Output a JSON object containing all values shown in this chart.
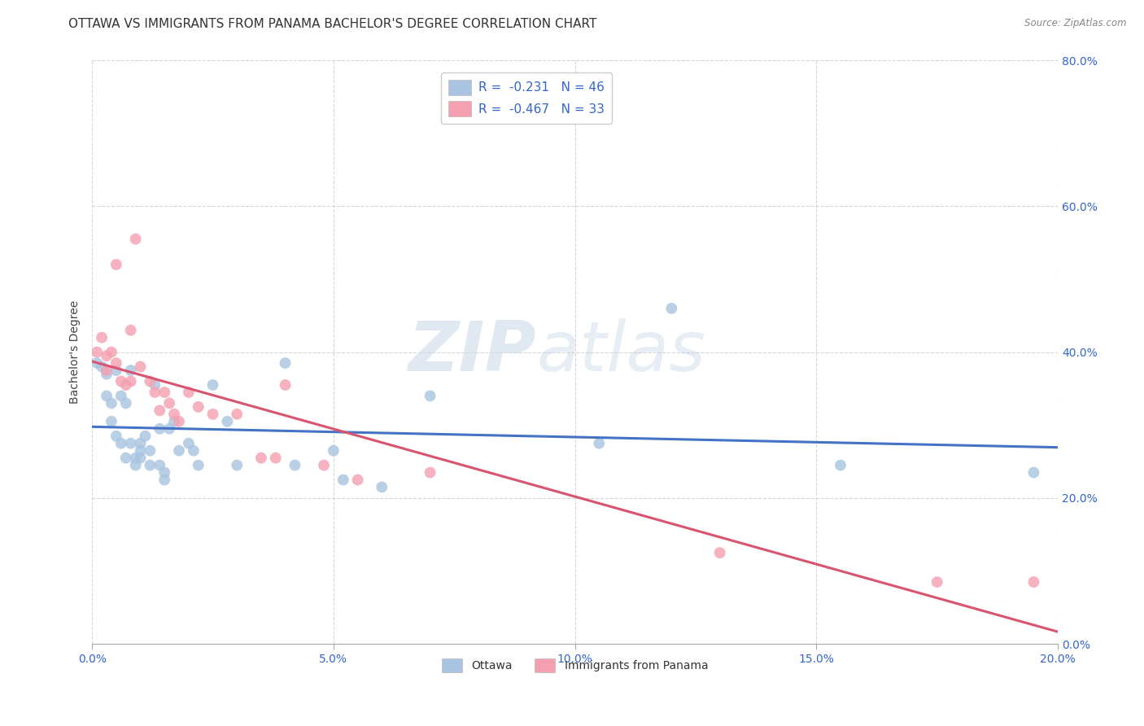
{
  "title": "OTTAWA VS IMMIGRANTS FROM PANAMA BACHELOR'S DEGREE CORRELATION CHART",
  "source": "Source: ZipAtlas.com",
  "ylabel": "Bachelor's Degree",
  "xlim": [
    0.0,
    0.2
  ],
  "ylim": [
    0.0,
    0.8
  ],
  "xticks": [
    0.0,
    0.05,
    0.1,
    0.15,
    0.2
  ],
  "yticks": [
    0.0,
    0.2,
    0.4,
    0.6,
    0.8
  ],
  "xticklabels": [
    "0.0%",
    "5.0%",
    "10.0%",
    "15.0%",
    "20.0%"
  ],
  "yticklabels": [
    "0.0%",
    "20.0%",
    "40.0%",
    "60.0%",
    "80.0%"
  ],
  "ottawa_color": "#a8c4e0",
  "panama_color": "#f4a0b0",
  "ottawa_line_color": "#4472c4",
  "panama_line_color": "#d9546e",
  "legend_R_ottawa": "R =  -0.231",
  "legend_N_ottawa": "N = 46",
  "legend_R_panama": "R =  -0.467",
  "legend_N_panama": "N = 33",
  "watermark_zip": "ZIP",
  "watermark_atlas": "atlas",
  "background_color": "#ffffff",
  "grid_color": "#cccccc",
  "ottawa_x": [
    0.001,
    0.002,
    0.003,
    0.003,
    0.004,
    0.004,
    0.005,
    0.005,
    0.006,
    0.006,
    0.007,
    0.007,
    0.008,
    0.008,
    0.009,
    0.009,
    0.01,
    0.01,
    0.01,
    0.011,
    0.012,
    0.012,
    0.013,
    0.014,
    0.014,
    0.015,
    0.015,
    0.016,
    0.017,
    0.018,
    0.02,
    0.021,
    0.022,
    0.025,
    0.028,
    0.03,
    0.04,
    0.042,
    0.05,
    0.052,
    0.06,
    0.07,
    0.105,
    0.12,
    0.155,
    0.195
  ],
  "ottawa_y": [
    0.385,
    0.38,
    0.37,
    0.34,
    0.33,
    0.305,
    0.285,
    0.375,
    0.34,
    0.275,
    0.33,
    0.255,
    0.375,
    0.275,
    0.255,
    0.245,
    0.275,
    0.265,
    0.255,
    0.285,
    0.265,
    0.245,
    0.355,
    0.295,
    0.245,
    0.235,
    0.225,
    0.295,
    0.305,
    0.265,
    0.275,
    0.265,
    0.245,
    0.355,
    0.305,
    0.245,
    0.385,
    0.245,
    0.265,
    0.225,
    0.215,
    0.34,
    0.275,
    0.46,
    0.245,
    0.235
  ],
  "panama_x": [
    0.001,
    0.002,
    0.003,
    0.003,
    0.004,
    0.005,
    0.005,
    0.006,
    0.007,
    0.008,
    0.008,
    0.009,
    0.01,
    0.012,
    0.013,
    0.014,
    0.015,
    0.016,
    0.017,
    0.018,
    0.02,
    0.022,
    0.025,
    0.03,
    0.035,
    0.038,
    0.04,
    0.048,
    0.055,
    0.07,
    0.13,
    0.175,
    0.195
  ],
  "panama_y": [
    0.4,
    0.42,
    0.395,
    0.375,
    0.4,
    0.385,
    0.52,
    0.36,
    0.355,
    0.43,
    0.36,
    0.555,
    0.38,
    0.36,
    0.345,
    0.32,
    0.345,
    0.33,
    0.315,
    0.305,
    0.345,
    0.325,
    0.315,
    0.315,
    0.255,
    0.255,
    0.355,
    0.245,
    0.225,
    0.235,
    0.125,
    0.085,
    0.085
  ],
  "title_fontsize": 11,
  "axis_label_fontsize": 10,
  "tick_fontsize": 10,
  "legend_fontsize": 11,
  "marker_size": 100,
  "bottom_legend_labels": [
    "Ottawa",
    "Immigrants from Panama"
  ]
}
